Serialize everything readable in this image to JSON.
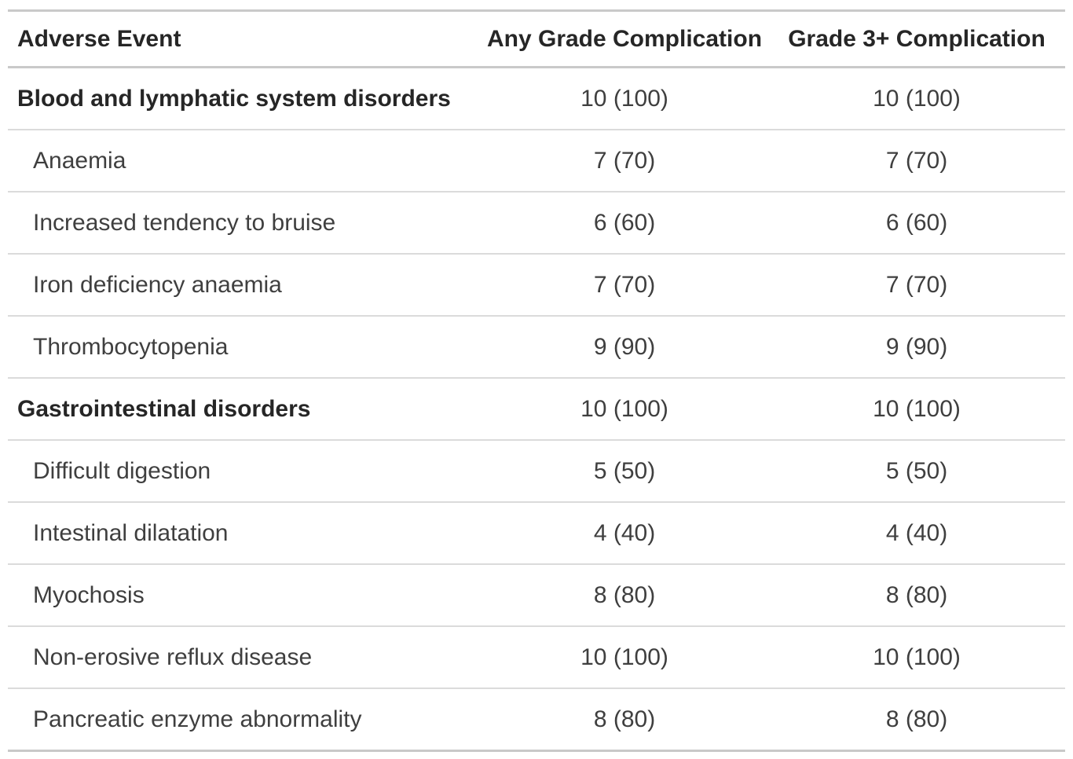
{
  "colors": {
    "background": "#ffffff",
    "header_text": "#262626",
    "body_text": "#3f3f3f",
    "thick_border": "#c9c9c9",
    "thin_border": "#dbdbdb"
  },
  "chart_data": {
    "type": "table",
    "columns": [
      "Adverse Event",
      "Any Grade Complication",
      "Grade 3+ Complication"
    ],
    "column_alignments": [
      "left",
      "center",
      "center"
    ],
    "rows": [
      {
        "label": "Blood and lymphatic system disorders",
        "level": "category",
        "any_grade": "10 (100)",
        "grade3plus": "10 (100)"
      },
      {
        "label": "Anaemia",
        "level": "item",
        "any_grade": "7 (70)",
        "grade3plus": "7 (70)"
      },
      {
        "label": "Increased tendency to bruise",
        "level": "item",
        "any_grade": "6 (60)",
        "grade3plus": "6 (60)"
      },
      {
        "label": "Iron deficiency anaemia",
        "level": "item",
        "any_grade": "7 (70)",
        "grade3plus": "7 (70)"
      },
      {
        "label": "Thrombocytopenia",
        "level": "item",
        "any_grade": "9 (90)",
        "grade3plus": "9 (90)"
      },
      {
        "label": "Gastrointestinal disorders",
        "level": "category",
        "any_grade": "10 (100)",
        "grade3plus": "10 (100)"
      },
      {
        "label": "Difficult digestion",
        "level": "item",
        "any_grade": "5 (50)",
        "grade3plus": "5 (50)"
      },
      {
        "label": "Intestinal dilatation",
        "level": "item",
        "any_grade": "4 (40)",
        "grade3plus": "4 (40)"
      },
      {
        "label": "Myochosis",
        "level": "item",
        "any_grade": "8 (80)",
        "grade3plus": "8 (80)"
      },
      {
        "label": "Non-erosive reflux disease",
        "level": "item",
        "any_grade": "10 (100)",
        "grade3plus": "10 (100)"
      },
      {
        "label": "Pancreatic enzyme abnormality",
        "level": "item",
        "any_grade": "8 (80)",
        "grade3plus": "8 (80)"
      }
    ]
  }
}
